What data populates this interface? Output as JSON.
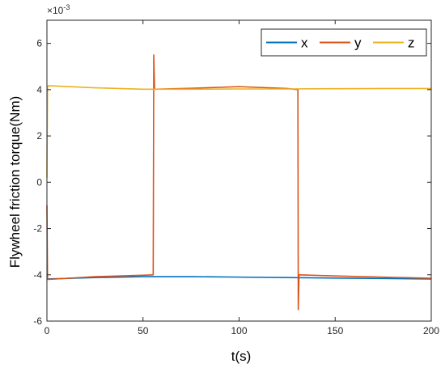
{
  "chart_data": {
    "type": "line",
    "xlabel": "t(s)",
    "ylabel": "Flywheel  friction torque(Nm)",
    "exponent_label": "×10",
    "exponent_power": "-3",
    "xlim": [
      0,
      200
    ],
    "ylim": [
      -6,
      7
    ],
    "xticks": [
      0,
      50,
      100,
      150,
      200
    ],
    "yticks": [
      -6,
      -4,
      -2,
      0,
      2,
      4,
      6
    ],
    "xtick_labels": [
      "0",
      "50",
      "100",
      "150",
      "200"
    ],
    "ytick_labels": [
      "-6",
      "-4",
      "-2",
      "0",
      "2",
      "4",
      "6"
    ],
    "grid": false,
    "legend_position": "top-right",
    "series": [
      {
        "name": "x",
        "color": "#0072BD",
        "x": [
          0,
          25,
          50,
          75,
          100,
          125,
          150,
          175,
          200
        ],
        "y": [
          -4.18,
          -4.12,
          -4.08,
          -4.08,
          -4.1,
          -4.12,
          -4.14,
          -4.16,
          -4.18
        ]
      },
      {
        "name": "y",
        "color": "#D95319",
        "x": [
          0,
          0.3,
          0.6,
          25,
          50,
          55.3,
          55.6,
          56,
          75,
          100,
          125,
          130.6,
          130.8,
          131.2,
          150,
          175,
          200
        ],
        "y": [
          -1.0,
          -4.2,
          -4.2,
          -4.08,
          -4.02,
          -4.0,
          5.5,
          4.02,
          4.06,
          4.13,
          4.05,
          4.0,
          -5.5,
          -4.0,
          -4.05,
          -4.1,
          -4.15
        ]
      },
      {
        "name": "z",
        "color": "#EDB120",
        "x": [
          0,
          0.3,
          0.8,
          25,
          50,
          75,
          100,
          125,
          150,
          175,
          200
        ],
        "y": [
          0.2,
          4.15,
          4.17,
          4.08,
          4.02,
          4.02,
          4.03,
          4.03,
          4.04,
          4.05,
          4.05
        ]
      }
    ]
  }
}
